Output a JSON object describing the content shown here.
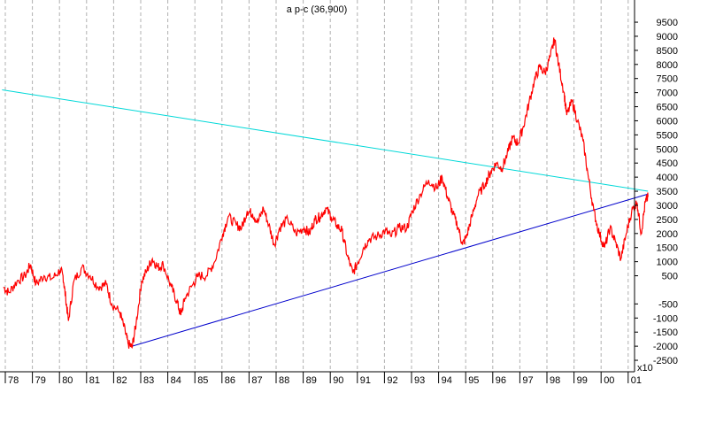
{
  "chart_data": {
    "type": "line",
    "title": "a p-c (36,900)",
    "y_scale_note": "x10",
    "ylim": [
      -2700,
      10200
    ],
    "y_ticks": [
      -2500,
      -2000,
      -1500,
      -1000,
      -500,
      500,
      1000,
      1500,
      2000,
      2500,
      3000,
      3500,
      4000,
      4500,
      5000,
      5500,
      6000,
      6500,
      7000,
      7500,
      8000,
      8500,
      9000,
      9500
    ],
    "x_tick_labels": [
      "78",
      "79",
      "80",
      "81",
      "82",
      "83",
      "84",
      "85",
      "86",
      "87",
      "88",
      "89",
      "90",
      "91",
      "92",
      "93",
      "94",
      "95",
      "96",
      "97",
      "98",
      "99",
      "00",
      "01"
    ],
    "grid": "vertical dashed at year boundaries",
    "series": [
      {
        "color": "#ff0000",
        "points": [
          [
            1977.8,
            100
          ],
          [
            1978.0,
            -100
          ],
          [
            1978.3,
            300
          ],
          [
            1978.6,
            500
          ],
          [
            1978.8,
            900
          ],
          [
            1979.0,
            200
          ],
          [
            1979.3,
            500
          ],
          [
            1979.6,
            400
          ],
          [
            1979.9,
            700
          ],
          [
            1980.0,
            500
          ],
          [
            1980.1,
            -300
          ],
          [
            1980.2,
            -1100
          ],
          [
            1980.4,
            300
          ],
          [
            1980.7,
            800
          ],
          [
            1981.0,
            500
          ],
          [
            1981.3,
            100
          ],
          [
            1981.6,
            200
          ],
          [
            1981.8,
            -500
          ],
          [
            1982.1,
            -800
          ],
          [
            1982.3,
            -1500
          ],
          [
            1982.4,
            -1900
          ],
          [
            1982.55,
            -2050
          ],
          [
            1982.7,
            -1200
          ],
          [
            1982.9,
            300
          ],
          [
            1983.1,
            700
          ],
          [
            1983.3,
            1100
          ],
          [
            1983.5,
            800
          ],
          [
            1983.7,
            900
          ],
          [
            1984.0,
            100
          ],
          [
            1984.2,
            -400
          ],
          [
            1984.35,
            -900
          ],
          [
            1984.5,
            -300
          ],
          [
            1984.8,
            200
          ],
          [
            1985.0,
            500
          ],
          [
            1985.3,
            500
          ],
          [
            1985.6,
            1000
          ],
          [
            1985.9,
            2000
          ],
          [
            1986.1,
            2600
          ],
          [
            1986.4,
            2300
          ],
          [
            1986.6,
            2200
          ],
          [
            1986.8,
            2800
          ],
          [
            1987.0,
            2700
          ],
          [
            1987.2,
            2400
          ],
          [
            1987.4,
            2900
          ],
          [
            1987.6,
            2300
          ],
          [
            1987.8,
            1600
          ],
          [
            1988.0,
            2200
          ],
          [
            1988.3,
            2500
          ],
          [
            1988.6,
            2000
          ],
          [
            1988.9,
            2200
          ],
          [
            1989.1,
            2000
          ],
          [
            1989.3,
            2500
          ],
          [
            1989.5,
            2600
          ],
          [
            1989.7,
            2900
          ],
          [
            1989.9,
            2600
          ],
          [
            1990.1,
            2300
          ],
          [
            1990.3,
            2100
          ],
          [
            1990.5,
            1200
          ],
          [
            1990.7,
            600
          ],
          [
            1990.9,
            1000
          ],
          [
            1991.1,
            1500
          ],
          [
            1991.3,
            1800
          ],
          [
            1991.6,
            1900
          ],
          [
            1991.9,
            2100
          ],
          [
            1992.1,
            1900
          ],
          [
            1992.4,
            2200
          ],
          [
            1992.7,
            2200
          ],
          [
            1992.9,
            2800
          ],
          [
            1993.2,
            3400
          ],
          [
            1993.5,
            3900
          ],
          [
            1993.8,
            3600
          ],
          [
            1994.0,
            4000
          ],
          [
            1994.2,
            3300
          ],
          [
            1994.4,
            2700
          ],
          [
            1994.6,
            2200
          ],
          [
            1994.75,
            1600
          ],
          [
            1994.9,
            1900
          ],
          [
            1995.1,
            2600
          ],
          [
            1995.3,
            3300
          ],
          [
            1995.6,
            3800
          ],
          [
            1995.8,
            4200
          ],
          [
            1996.0,
            4500
          ],
          [
            1996.2,
            4300
          ],
          [
            1996.4,
            4800
          ],
          [
            1996.6,
            5400
          ],
          [
            1996.8,
            5200
          ],
          [
            1997.0,
            5800
          ],
          [
            1997.2,
            6600
          ],
          [
            1997.4,
            7400
          ],
          [
            1997.6,
            7900
          ],
          [
            1997.8,
            7700
          ],
          [
            1998.0,
            8300
          ],
          [
            1998.15,
            8900
          ],
          [
            1998.3,
            8000
          ],
          [
            1998.5,
            7000
          ],
          [
            1998.6,
            6200
          ],
          [
            1998.8,
            6700
          ],
          [
            1999.0,
            6000
          ],
          [
            1999.2,
            5300
          ],
          [
            1999.4,
            4000
          ],
          [
            1999.6,
            2800
          ],
          [
            1999.8,
            2000
          ],
          [
            2000.0,
            1500
          ],
          [
            2000.2,
            2200
          ],
          [
            2000.4,
            1700
          ],
          [
            2000.6,
            1100
          ],
          [
            2000.8,
            2000
          ],
          [
            2001.0,
            2800
          ],
          [
            2001.2,
            3100
          ],
          [
            2001.35,
            2000
          ],
          [
            2001.5,
            3100
          ],
          [
            2001.6,
            3300
          ]
        ]
      }
    ],
    "trendlines": [
      {
        "color": "#00d8d8",
        "points": [
          [
            1977.75,
            7100
          ],
          [
            2001.6,
            3500
          ]
        ]
      },
      {
        "color": "#0000cc",
        "points": [
          [
            1982.55,
            -2000
          ],
          [
            2001.6,
            3400
          ]
        ]
      }
    ]
  }
}
